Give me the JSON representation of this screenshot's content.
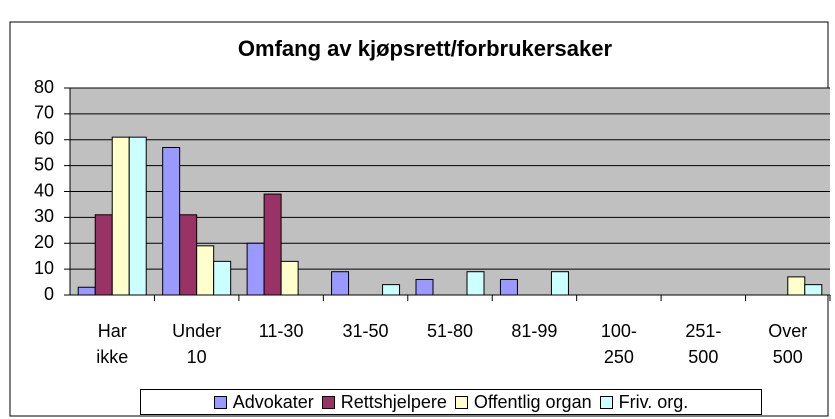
{
  "chart_data": {
    "type": "bar",
    "title": "Omfang av kjøpsrett/forbrukersaker",
    "categories": [
      "Har ikke",
      "Under 10",
      "11-30",
      "31-50",
      "51-80",
      "81-99",
      "100-250",
      "251-500",
      "Over 500"
    ],
    "series": [
      {
        "name": "Advokater",
        "color": "#9999ff",
        "values": [
          3,
          57,
          20,
          9,
          6,
          6,
          0,
          0,
          0
        ]
      },
      {
        "name": "Rettshjelpere",
        "color": "#993366",
        "values": [
          31,
          31,
          39,
          0,
          0,
          0,
          0,
          0,
          0
        ]
      },
      {
        "name": "Offentlig organ",
        "color": "#ffffcc",
        "values": [
          61,
          19,
          13,
          0,
          0,
          0,
          0,
          0,
          7
        ]
      },
      {
        "name": "Friv. org.",
        "color": "#ccffff",
        "values": [
          61,
          13,
          0,
          4,
          9,
          9,
          0,
          0,
          4
        ]
      }
    ],
    "ylim": [
      0,
      80
    ],
    "yticks": [
      0,
      10,
      20,
      30,
      40,
      50,
      60,
      70,
      80
    ],
    "grid": true,
    "legend": "bottom"
  }
}
